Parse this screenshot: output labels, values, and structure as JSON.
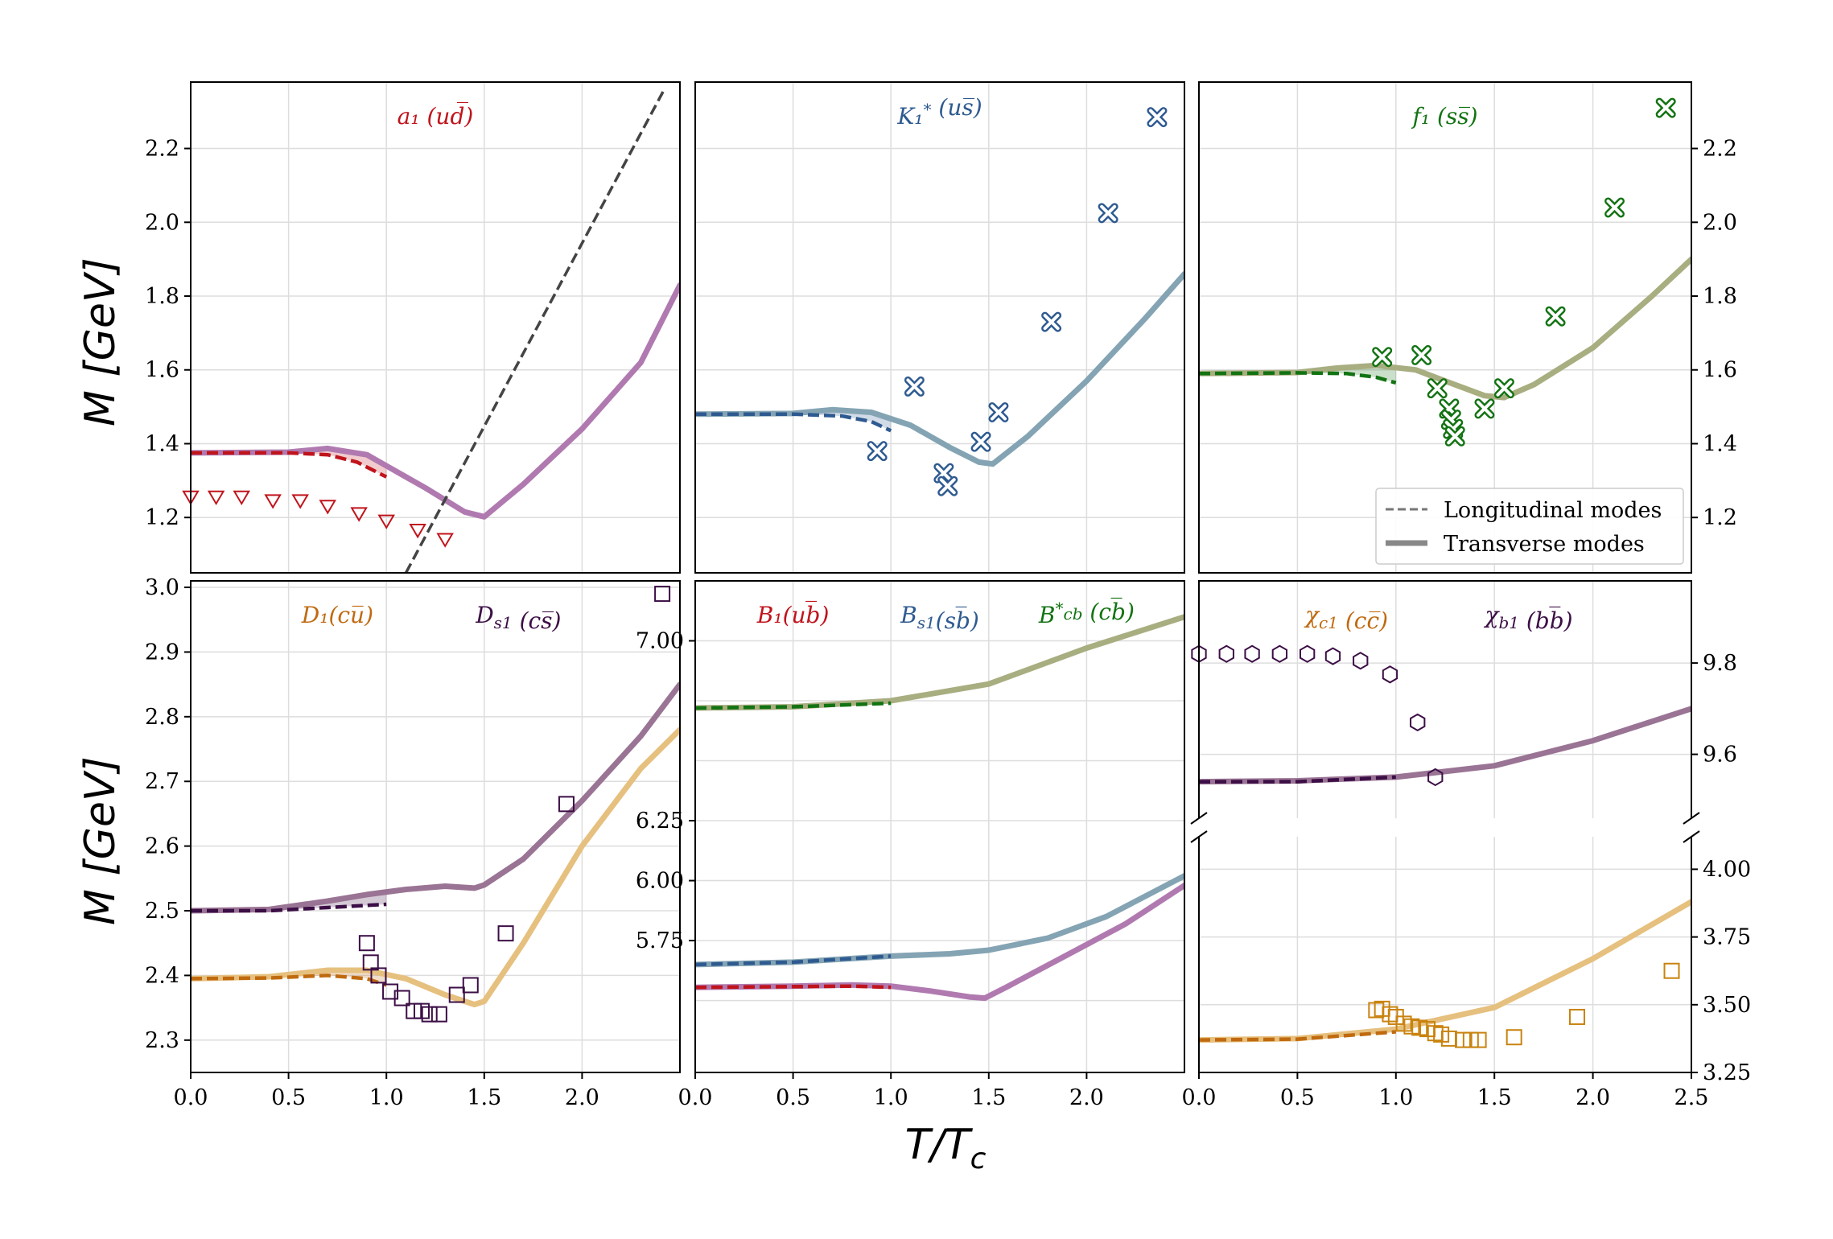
{
  "figure": {
    "xlabel": "T/T_c",
    "ylabel": "M  [GeV]",
    "legend": [
      "Longitudinal modes",
      "Transverse modes"
    ]
  },
  "chart_data": [
    {
      "type": "line",
      "panel": "top-left",
      "labels": [
        {
          "text": "a₁ (ud̅)",
          "color": "#c0141c"
        }
      ],
      "xlim": [
        0,
        2.5
      ],
      "ylim": [
        1.05,
        2.38
      ],
      "xticks": [],
      "yticks": [
        "1.2",
        "1.4",
        "1.6",
        "1.8",
        "2.0",
        "2.2"
      ],
      "ytick_side": "left",
      "series": [
        {
          "style": "transverse",
          "color": "#b07ab0",
          "x": [
            0,
            0.5,
            0.7,
            0.9,
            1.0,
            1.2,
            1.4,
            1.5,
            1.7,
            2.0,
            2.3,
            2.5
          ],
          "y": [
            1.375,
            1.377,
            1.387,
            1.37,
            1.34,
            1.28,
            1.215,
            1.202,
            1.29,
            1.44,
            1.62,
            1.83
          ]
        },
        {
          "style": "longitudinal",
          "color": "#c0141c",
          "x": [
            0,
            0.5,
            0.7,
            0.85,
            1.0
          ],
          "y": [
            1.375,
            1.375,
            1.37,
            1.35,
            1.31
          ]
        },
        {
          "style": "line",
          "color": "#444444",
          "x": [
            1.1,
            2.42
          ],
          "y": [
            1.05,
            2.36
          ]
        }
      ],
      "markers": {
        "shape": "triangle-down",
        "color": "#c0141c",
        "x": [
          0,
          0.13,
          0.26,
          0.42,
          0.56,
          0.7,
          0.86,
          1.0,
          1.16,
          1.3
        ],
        "y": [
          1.255,
          1.255,
          1.255,
          1.245,
          1.245,
          1.23,
          1.21,
          1.19,
          1.165,
          1.14
        ]
      }
    },
    {
      "type": "line",
      "panel": "top-middle",
      "labels": [
        {
          "text": "K₁* (us̅)",
          "color": "#2e5a90"
        }
      ],
      "xlim": [
        0,
        2.5
      ],
      "ylim": [
        1.05,
        2.38
      ],
      "xticks": [],
      "yticks": [],
      "ytick_side": "none",
      "series": [
        {
          "style": "transverse",
          "color": "#84a4b4",
          "x": [
            0,
            0.5,
            0.7,
            0.9,
            1.1,
            1.3,
            1.45,
            1.52,
            1.7,
            2.0,
            2.3,
            2.5
          ],
          "y": [
            1.48,
            1.482,
            1.492,
            1.485,
            1.45,
            1.39,
            1.35,
            1.345,
            1.42,
            1.57,
            1.74,
            1.86
          ]
        },
        {
          "style": "longitudinal",
          "color": "#2e5a90",
          "x": [
            0,
            0.5,
            0.75,
            0.9,
            1.0
          ],
          "y": [
            1.48,
            1.48,
            1.475,
            1.46,
            1.435
          ]
        }
      ],
      "markers": {
        "shape": "x-filled",
        "color": "#2e5a90",
        "x": [
          0.93,
          1.12,
          1.27,
          1.29,
          1.46,
          1.55,
          1.82,
          2.11,
          2.36
        ],
        "y": [
          1.38,
          1.555,
          1.32,
          1.285,
          1.405,
          1.485,
          1.73,
          2.025,
          2.285
        ]
      }
    },
    {
      "type": "line",
      "panel": "top-right",
      "labels": [
        {
          "text": "f₁ (ss̅)",
          "color": "#127312"
        }
      ],
      "xlim": [
        0,
        2.5
      ],
      "ylim": [
        1.05,
        2.38
      ],
      "xticks": [],
      "yticks": [
        "1.2",
        "1.4",
        "1.6",
        "1.8",
        "2.0",
        "2.2"
      ],
      "ytick_side": "right",
      "series": [
        {
          "style": "transverse",
          "color": "#a8ae80",
          "x": [
            0,
            0.5,
            0.7,
            0.9,
            1.1,
            1.3,
            1.45,
            1.55,
            1.7,
            2.0,
            2.3,
            2.5
          ],
          "y": [
            1.59,
            1.593,
            1.605,
            1.612,
            1.6,
            1.56,
            1.53,
            1.525,
            1.56,
            1.66,
            1.8,
            1.9
          ]
        },
        {
          "style": "longitudinal",
          "color": "#127312",
          "x": [
            0,
            0.5,
            0.75,
            0.9,
            1.0
          ],
          "y": [
            1.59,
            1.592,
            1.59,
            1.58,
            1.565
          ]
        }
      ],
      "markers": {
        "shape": "x-filled",
        "color": "#127312",
        "x": [
          0.93,
          1.13,
          1.21,
          1.27,
          1.28,
          1.29,
          1.3,
          1.45,
          1.55,
          1.81,
          2.11,
          2.37
        ],
        "y": [
          1.635,
          1.64,
          1.55,
          1.495,
          1.465,
          1.44,
          1.42,
          1.495,
          1.55,
          1.745,
          2.04,
          2.31
        ]
      }
    },
    {
      "type": "line",
      "panel": "bottom-left",
      "labels": [
        {
          "text": "D₁(cu̅)",
          "color": "#c06a10"
        },
        {
          "text": "D_s1 (cs̅)",
          "color": "#3c0e46"
        }
      ],
      "xlim": [
        0,
        2.5
      ],
      "ylim": [
        2.25,
        3.01
      ],
      "xticks": [
        "0.0",
        "0.5",
        "1.0",
        "1.5",
        "2.0"
      ],
      "yticks": [
        "2.3",
        "2.4",
        "2.5",
        "2.6",
        "2.7",
        "2.8",
        "2.9",
        "3.0"
      ],
      "ytick_side": "left",
      "series": [
        {
          "style": "transverse",
          "color": "#e6c07e",
          "x": [
            0,
            0.4,
            0.7,
            0.9,
            1.1,
            1.3,
            1.45,
            1.5,
            1.7,
            2.0,
            2.3,
            2.5
          ],
          "y": [
            2.395,
            2.398,
            2.408,
            2.408,
            2.395,
            2.37,
            2.355,
            2.36,
            2.45,
            2.6,
            2.72,
            2.78
          ]
        },
        {
          "style": "longitudinal",
          "color": "#c06a10",
          "x": [
            0,
            0.4,
            0.7,
            0.9,
            1.0
          ],
          "y": [
            2.395,
            2.396,
            2.4,
            2.395,
            2.385
          ]
        },
        {
          "style": "transverse",
          "color": "#9a7494",
          "x": [
            0,
            0.4,
            0.7,
            0.9,
            1.1,
            1.3,
            1.45,
            1.5,
            1.7,
            2.0,
            2.3,
            2.5
          ],
          "y": [
            2.5,
            2.502,
            2.515,
            2.525,
            2.533,
            2.538,
            2.535,
            2.54,
            2.58,
            2.67,
            2.77,
            2.85
          ]
        },
        {
          "style": "longitudinal",
          "color": "#3c0e46",
          "x": [
            0,
            0.4,
            0.7,
            1.0
          ],
          "y": [
            2.5,
            2.5,
            2.505,
            2.51
          ]
        }
      ],
      "markers": {
        "shape": "square",
        "color": "#3c0e46",
        "x": [
          0.9,
          0.92,
          0.96,
          1.02,
          1.08,
          1.14,
          1.18,
          1.22,
          1.27,
          1.36,
          1.43,
          1.61,
          1.92,
          2.41
        ],
        "y": [
          2.45,
          2.42,
          2.4,
          2.375,
          2.365,
          2.345,
          2.345,
          2.34,
          2.34,
          2.37,
          2.385,
          2.465,
          2.665,
          2.99
        ]
      }
    },
    {
      "type": "line",
      "panel": "bottom-middle",
      "labels": [
        {
          "text": "B₁(ub̅)",
          "color": "#c0141c"
        },
        {
          "text": "B_s1(sb̅)",
          "color": "#2e5a90"
        },
        {
          "text": "B*_cb (cb̅)",
          "color": "#127312"
        }
      ],
      "xlim": [
        0,
        2.5
      ],
      "ylim": [
        5.2,
        7.25
      ],
      "xticks": [
        "0.0",
        "0.5",
        "1.0",
        "1.5",
        "2.0"
      ],
      "yticks": [
        "5.75",
        "6.00",
        "6.25",
        "7.00"
      ],
      "ytick_side": "left",
      "series": [
        {
          "style": "transverse",
          "color": "#a8ae80",
          "x": [
            0,
            0.5,
            1.0,
            1.5,
            2.0,
            2.5
          ],
          "y": [
            6.72,
            6.725,
            6.75,
            6.82,
            6.97,
            7.1
          ]
        },
        {
          "style": "longitudinal",
          "color": "#127312",
          "x": [
            0,
            0.5,
            1.0
          ],
          "y": [
            6.72,
            6.725,
            6.74
          ]
        },
        {
          "style": "transverse",
          "color": "#84a4b4",
          "x": [
            0,
            0.5,
            1.0,
            1.3,
            1.5,
            1.8,
            2.1,
            2.5
          ],
          "y": [
            5.65,
            5.66,
            5.685,
            5.695,
            5.71,
            5.76,
            5.85,
            6.02
          ]
        },
        {
          "style": "longitudinal",
          "color": "#2e5a90",
          "x": [
            0,
            0.5,
            1.0
          ],
          "y": [
            5.65,
            5.66,
            5.685
          ]
        },
        {
          "style": "transverse",
          "color": "#b07ab0",
          "x": [
            0,
            0.5,
            0.8,
            1.0,
            1.2,
            1.4,
            1.48,
            1.6,
            1.9,
            2.2,
            2.5
          ],
          "y": [
            5.555,
            5.56,
            5.565,
            5.56,
            5.54,
            5.515,
            5.51,
            5.56,
            5.69,
            5.82,
            5.98
          ]
        },
        {
          "style": "longitudinal",
          "color": "#c0141c",
          "x": [
            0,
            0.5,
            0.8,
            1.0
          ],
          "y": [
            5.555,
            5.558,
            5.56,
            5.555
          ]
        }
      ],
      "markers": null
    },
    {
      "type": "line",
      "panel": "bottom-right",
      "labels": [
        {
          "text": "χ_c1 (cc̅)",
          "color": "#c06a10"
        },
        {
          "text": "χ_b1 (bb̅)",
          "color": "#3c0e46"
        }
      ],
      "xlim": [
        0,
        2.5
      ],
      "upper_ylim": [
        9.46,
        9.98
      ],
      "lower_ylim": [
        3.25,
        4.12
      ],
      "xticks": [
        "0.0",
        "0.5",
        "1.0",
        "1.5",
        "2.0",
        "2.5"
      ],
      "upper_yticks": [
        "9.6",
        "9.8"
      ],
      "lower_yticks": [
        "3.25",
        "3.50",
        "3.75",
        "4.00"
      ],
      "ytick_side": "right",
      "series": [
        {
          "style": "transverse",
          "color": "#9a7494",
          "part": "upper",
          "x": [
            0,
            0.5,
            1.0,
            1.5,
            2.0,
            2.5
          ],
          "y": [
            9.54,
            9.542,
            9.55,
            9.575,
            9.63,
            9.7
          ]
        },
        {
          "style": "longitudinal",
          "color": "#3c0e46",
          "part": "upper",
          "x": [
            0,
            0.5,
            1.0
          ],
          "y": [
            9.54,
            9.54,
            9.55
          ]
        },
        {
          "style": "transverse",
          "color": "#e6c07e",
          "part": "lower",
          "x": [
            0,
            0.5,
            1.0,
            1.5,
            2.0,
            2.5
          ],
          "y": [
            3.37,
            3.375,
            3.41,
            3.49,
            3.67,
            3.88
          ]
        },
        {
          "style": "longitudinal",
          "color": "#c06a10",
          "part": "lower",
          "x": [
            0,
            0.5,
            1.0
          ],
          "y": [
            3.37,
            3.373,
            3.4
          ]
        }
      ],
      "markers_upper": {
        "shape": "hexagon",
        "color": "#3c0e46",
        "x": [
          0,
          0.14,
          0.27,
          0.41,
          0.55,
          0.68,
          0.82,
          0.97,
          1.11,
          1.2
        ],
        "y": [
          9.82,
          9.82,
          9.82,
          9.82,
          9.82,
          9.815,
          9.805,
          9.775,
          9.67,
          9.55
        ]
      },
      "markers_lower": {
        "shape": "square",
        "color": "#c9830f",
        "x": [
          0.9,
          0.93,
          0.97,
          1.0,
          1.04,
          1.08,
          1.12,
          1.16,
          1.2,
          1.23,
          1.27,
          1.34,
          1.38,
          1.42,
          1.6,
          1.92,
          2.4
        ],
        "y": [
          3.48,
          3.485,
          3.465,
          3.455,
          3.43,
          3.42,
          3.415,
          3.41,
          3.395,
          3.39,
          3.375,
          3.37,
          3.37,
          3.37,
          3.38,
          3.455,
          3.625
        ]
      }
    }
  ]
}
